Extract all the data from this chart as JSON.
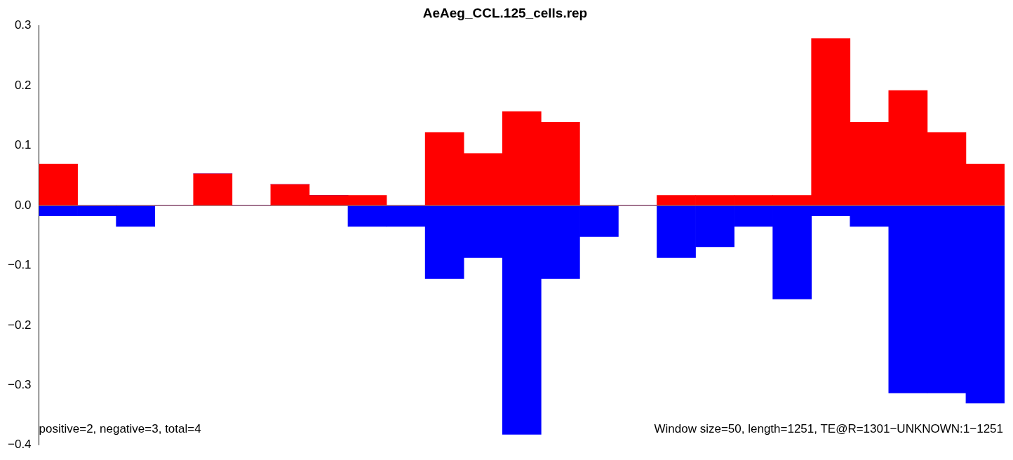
{
  "chart_data": {
    "type": "bar",
    "title": "AeAeg_CCL.125_cells.rep",
    "categories": [
      null,
      null,
      null,
      null,
      null,
      null,
      null,
      null,
      null,
      null,
      null,
      null,
      null,
      null,
      null,
      null,
      null,
      null,
      null,
      null,
      null,
      null,
      null,
      null,
      null
    ],
    "stacked": true,
    "series": [
      {
        "color": "#ff0000",
        "values": [
          0.069,
          0,
          0,
          0,
          0.053,
          0,
          0.035,
          0.017,
          0.017,
          0,
          0.122,
          0.087,
          0.157,
          0.139,
          0,
          0,
          0.017,
          0.017,
          0.017,
          0.017,
          0.279,
          0.139,
          0.192,
          0.122,
          0.069
        ]
      },
      {
        "color": "#0000ff",
        "values": [
          -0.017,
          -0.017,
          -0.035,
          0,
          0,
          0,
          0,
          0,
          -0.035,
          -0.035,
          -0.122,
          -0.087,
          -0.382,
          -0.122,
          -0.052,
          0,
          -0.087,
          -0.069,
          -0.035,
          -0.156,
          -0.017,
          -0.035,
          -0.313,
          -0.313,
          -0.33
        ]
      }
    ],
    "ylim": [
      -0.4,
      0.3
    ],
    "yticks": [
      {
        "value": -0.4,
        "label": "−0.4"
      },
      {
        "value": -0.3,
        "label": "−0.3"
      },
      {
        "value": -0.2,
        "label": "−0.2"
      },
      {
        "value": -0.1,
        "label": "−0.1"
      },
      {
        "value": 0,
        "label": "0.0"
      },
      {
        "value": 0.1,
        "label": "0.1"
      },
      {
        "value": 0.2,
        "label": "0.2"
      },
      {
        "value": 0.3,
        "label": "0.3"
      }
    ],
    "ref_lines": [
      {
        "axis": "y",
        "value": 0,
        "color": "#808080"
      }
    ],
    "annotations": [
      "positive=2, negative=3, total=4",
      "Window size=50, length=1251, TE@R=1301−UNKNOWN:1−1251"
    ],
    "grid": false,
    "legend": false,
    "tick_labels": "y"
  }
}
